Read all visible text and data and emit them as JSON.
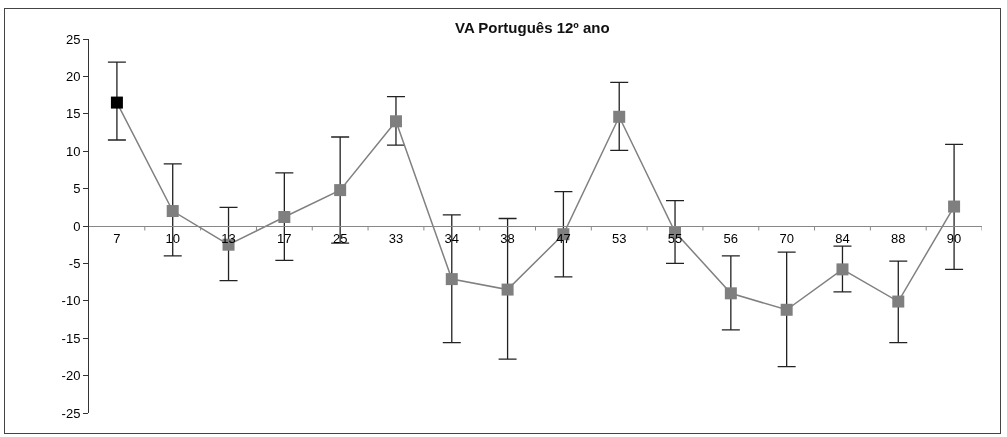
{
  "chart_data": {
    "type": "line",
    "title": "VA Português 12º ano",
    "categories": [
      "7",
      "10",
      "13",
      "17",
      "25",
      "33",
      "34",
      "38",
      "47",
      "53",
      "55",
      "56",
      "70",
      "84",
      "88",
      "90"
    ],
    "series": [
      {
        "color": "#808080",
        "colors": [
          "#000000",
          "#7f7f7f",
          "#7f7f7f",
          "#7f7f7f",
          "#7f7f7f",
          "#7f7f7f",
          "#7f7f7f",
          "#7f7f7f",
          "#7f7f7f",
          "#7f7f7f",
          "#7f7f7f",
          "#7f7f7f",
          "#7f7f7f",
          "#7f7f7f",
          "#7f7f7f",
          "#7f7f7f"
        ],
        "values": [
          16.5,
          2.0,
          -2.5,
          1.2,
          4.8,
          14.0,
          -7.1,
          -8.5,
          -1.1,
          14.6,
          -0.8,
          -9.0,
          -11.2,
          -5.8,
          -10.1,
          2.6
        ],
        "errors": [
          [
            11.5,
            21.9
          ],
          [
            -4.0,
            8.3
          ],
          [
            -7.3,
            2.5
          ],
          [
            -4.6,
            7.1
          ],
          [
            -2.3,
            11.9
          ],
          [
            10.8,
            17.3
          ],
          [
            -15.6,
            1.5
          ],
          [
            -17.8,
            1.0
          ],
          [
            -6.8,
            4.6
          ],
          [
            10.1,
            19.2
          ],
          [
            -5.0,
            3.4
          ],
          [
            -13.9,
            -4.0
          ],
          [
            -18.8,
            -3.5
          ],
          [
            -8.8,
            -2.7
          ],
          [
            -15.6,
            -4.7
          ],
          [
            -5.8,
            10.9
          ]
        ]
      }
    ],
    "ylim": [
      -25,
      25
    ],
    "yticks": [
      -25,
      -20,
      -15,
      -10,
      -5,
      0,
      5,
      10,
      15,
      20,
      25
    ],
    "marker": "square",
    "line_style": "solid",
    "grid": false
  }
}
